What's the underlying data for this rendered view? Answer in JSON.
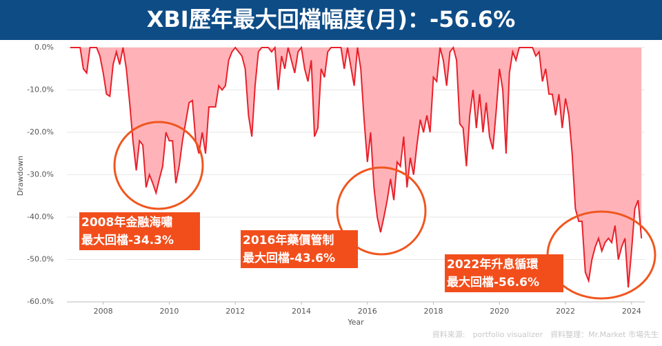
{
  "chart_data": {
    "type": "area",
    "title": "XBI歷年最大回檔幅度(月)：-56.6%",
    "y_label": "Drawdown",
    "x_label": "Year",
    "source": "資料來源:　portfolio visualizer　資料整理：Mr.Market 市場先生",
    "line_color": "#e8202a",
    "fill_color": "#ffb3b8",
    "grid": true,
    "xlim": [
      2006.9,
      2024.4
    ],
    "xticks": [
      2008,
      2010,
      2012,
      2014,
      2016,
      2018,
      2020,
      2022,
      2024
    ],
    "ylim": [
      -60,
      0
    ],
    "yticks": [
      {
        "value": 0,
        "label": "0.0%"
      },
      {
        "value": -10,
        "label": "-10.0%"
      },
      {
        "value": -20,
        "label": "-20.0%"
      },
      {
        "value": -30,
        "label": "-30.0%"
      },
      {
        "value": -40,
        "label": "-40.0%"
      },
      {
        "value": -50,
        "label": "-50.0%"
      },
      {
        "value": -60,
        "label": "-60.0%"
      }
    ],
    "x": [
      2007.0,
      2007.3,
      2007.4,
      2007.5,
      2007.6,
      2007.8,
      2007.9,
      2008.0,
      2008.1,
      2008.2,
      2008.3,
      2008.4,
      2008.5,
      2008.6,
      2008.7,
      2008.8,
      2008.9,
      2009.0,
      2009.1,
      2009.2,
      2009.3,
      2009.4,
      2009.5,
      2009.6,
      2009.7,
      2009.8,
      2009.9,
      2010.0,
      2010.1,
      2010.2,
      2010.3,
      2010.4,
      2010.6,
      2010.7,
      2010.8,
      2010.9,
      2011.0,
      2011.1,
      2011.2,
      2011.4,
      2011.5,
      2011.6,
      2011.7,
      2011.8,
      2011.9,
      2012.0,
      2012.2,
      2012.3,
      2012.4,
      2012.5,
      2012.6,
      2012.7,
      2012.8,
      2013.0,
      2013.1,
      2013.2,
      2013.3,
      2013.4,
      2013.5,
      2013.6,
      2013.8,
      2013.9,
      2014.0,
      2014.1,
      2014.2,
      2014.3,
      2014.4,
      2014.5,
      2014.6,
      2014.7,
      2014.8,
      2014.9,
      2015.2,
      2015.3,
      2015.4,
      2015.6,
      2015.7,
      2015.8,
      2015.9,
      2016.0,
      2016.1,
      2016.2,
      2016.3,
      2016.4,
      2016.5,
      2016.6,
      2016.7,
      2016.8,
      2016.9,
      2017.0,
      2017.1,
      2017.2,
      2017.3,
      2017.4,
      2017.5,
      2017.6,
      2017.7,
      2017.8,
      2017.9,
      2018.0,
      2018.1,
      2018.2,
      2018.3,
      2018.4,
      2018.5,
      2018.6,
      2018.7,
      2018.8,
      2018.9,
      2019.0,
      2019.1,
      2019.2,
      2019.3,
      2019.4,
      2019.5,
      2019.6,
      2019.7,
      2019.8,
      2019.9,
      2020.0,
      2020.1,
      2020.2,
      2020.3,
      2020.4,
      2020.5,
      2020.6,
      2021.0,
      2021.1,
      2021.2,
      2021.3,
      2021.4,
      2021.5,
      2021.6,
      2021.7,
      2021.8,
      2021.9,
      2022.0,
      2022.1,
      2022.2,
      2022.3,
      2022.4,
      2022.5,
      2022.6,
      2022.7,
      2022.8,
      2022.9,
      2023.0,
      2023.1,
      2023.2,
      2023.3,
      2023.4,
      2023.5,
      2023.6,
      2023.7,
      2023.8,
      2023.9,
      2024.0,
      2024.1,
      2024.2,
      2024.3
    ],
    "values": [
      0,
      0,
      -5,
      -6,
      0,
      0,
      -2,
      -6,
      -11,
      -11.5,
      -4,
      -1,
      -4,
      0,
      -5,
      -13,
      -22,
      -29,
      -22,
      -23,
      -33,
      -30,
      -32,
      -34.3,
      -31,
      -28,
      -20,
      -22,
      -22,
      -32,
      -28,
      -22,
      -13,
      -12.5,
      -22,
      -25,
      -20,
      -25,
      -14,
      -14,
      -9,
      -10,
      -9,
      -3,
      -1,
      0,
      -2,
      -5,
      -16,
      -21,
      -9,
      -1,
      0,
      0,
      -1,
      0,
      -10,
      -2,
      -5,
      0,
      -6,
      -1,
      0,
      -5,
      -8,
      -3,
      -21,
      -19,
      -5,
      -7,
      -1,
      0,
      0,
      -5,
      0,
      -9,
      0,
      -5,
      -17,
      -27,
      -20,
      -33,
      -40,
      -43.6,
      -40,
      -36,
      -31,
      -36,
      -27,
      -28,
      -21,
      -33,
      -26,
      -30,
      -23,
      -17,
      -20,
      -16,
      -20,
      -7,
      -8,
      0,
      -3,
      -9,
      -1,
      0,
      -3,
      -18,
      -19,
      -28,
      -16,
      -10,
      -19,
      -11,
      -20,
      -13,
      -21,
      -24,
      -15,
      -5,
      -10,
      -25,
      -6,
      -1,
      -3,
      0,
      0,
      -2,
      -1,
      -8,
      -5,
      -11,
      -11,
      -16,
      -11,
      -19,
      -12,
      -16,
      -25,
      -38,
      -41,
      -41,
      -53,
      -55,
      -50,
      -47,
      -45,
      -48,
      -46,
      -45,
      -46,
      -42,
      -50,
      -47,
      -45,
      -56.6,
      -48,
      -38,
      -36,
      -45
    ],
    "annotations": [
      {
        "lines": [
          "2008年金融海嘯",
          "最大回檔-34.3%"
        ]
      },
      {
        "lines": [
          "2016年藥價管制",
          "最大回檔-43.6%"
        ]
      },
      {
        "lines": [
          "2022年升息循環",
          "最大回檔-56.6%"
        ]
      }
    ]
  }
}
